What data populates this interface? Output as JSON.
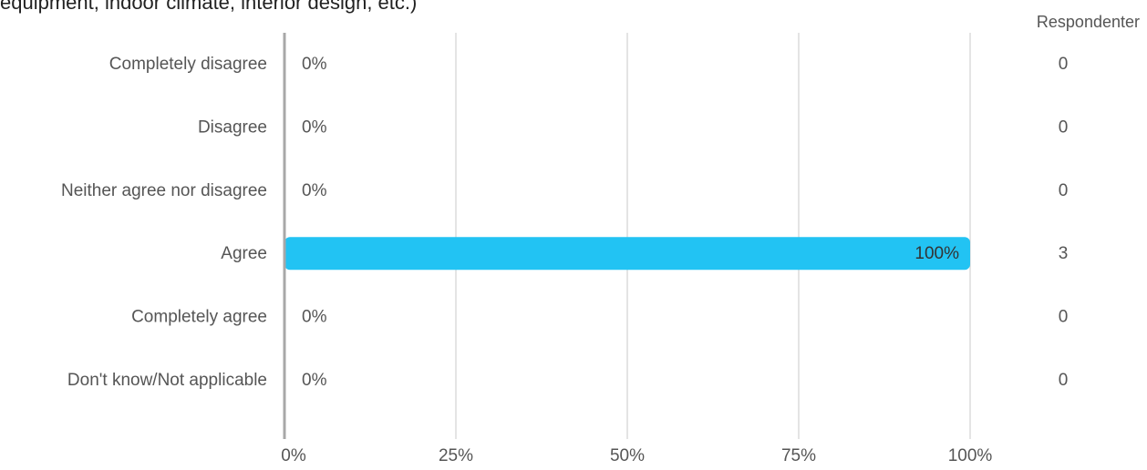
{
  "page": {
    "title_fragment": "equipment, indoor climate, interior design, etc.)",
    "respondents_header": "Respondenter"
  },
  "colors": {
    "bar": "#22c3f3",
    "gridline": "#c8c8c8",
    "axis": "#a8a8a8",
    "text": "#555555",
    "title": "#222222"
  },
  "chart_data": {
    "type": "bar",
    "orientation": "horizontal",
    "categories": [
      "Completely disagree",
      "Disagree",
      "Neither agree nor disagree",
      "Agree",
      "Completely agree",
      "Don't know/Not applicable"
    ],
    "values": [
      0,
      0,
      0,
      100,
      0,
      0
    ],
    "value_labels": [
      "0%",
      "0%",
      "0%",
      "100%",
      "0%",
      "0%"
    ],
    "respondents": [
      0,
      0,
      0,
      3,
      0,
      0
    ],
    "xlim": [
      0,
      100
    ],
    "xticks": [
      0,
      25,
      50,
      75,
      100
    ],
    "xtick_labels": [
      "0%",
      "25%",
      "50%",
      "75%",
      "100%"
    ],
    "grid": true,
    "legend": "none"
  }
}
